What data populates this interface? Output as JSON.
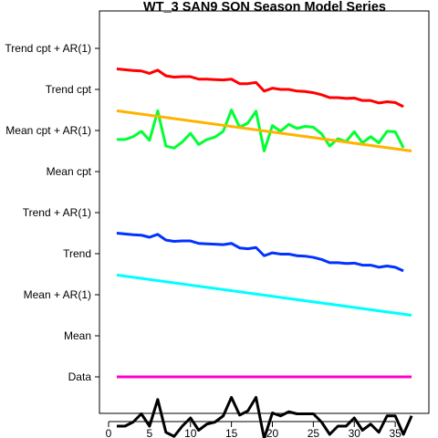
{
  "chart_data": {
    "type": "line",
    "title": "WT_3 SAN9 SON Season Model Series",
    "xlabel": "",
    "ylabel": "",
    "xlim": [
      0,
      38
    ],
    "x_ticks": [
      0,
      5,
      10,
      15,
      20,
      25,
      30,
      35
    ],
    "grid": false,
    "legend": "none",
    "y_categories": [
      "Data",
      "Mean",
      "Mean + AR(1)",
      "Trend",
      "Trend + AR(1)",
      "Mean cpt",
      "Mean cpt + AR(1)",
      "Trend cpt",
      "Trend cpt + AR(1)"
    ],
    "series": [
      {
        "name": "Data",
        "color": "#000000",
        "x": [
          1,
          2,
          3,
          4,
          5,
          6,
          7,
          8,
          9,
          10,
          11,
          12,
          13,
          14,
          15,
          16,
          17,
          18,
          19,
          20,
          21,
          22,
          23,
          24,
          25,
          26,
          27,
          28,
          29,
          30,
          31,
          32,
          33,
          34,
          35,
          36,
          37
        ],
        "y": [
          -0.2,
          -0.2,
          -0.1,
          0.1,
          -0.2,
          0.45,
          -0.35,
          -0.45,
          -0.2,
          0.0,
          -0.3,
          -0.15,
          -0.1,
          0.05,
          0.5,
          0.07,
          0.17,
          0.5,
          -0.5,
          0.12,
          0.05,
          0.15,
          0.1,
          0.1,
          0.1,
          -0.1,
          -0.4,
          -0.2,
          -0.2,
          0.0,
          -0.3,
          -0.15,
          -0.35,
          0.05,
          0.05,
          -0.4,
          0.05
        ]
      },
      {
        "name": "Mean",
        "color": "#ff00cc",
        "x": [
          1,
          37
        ],
        "y": [
          1,
          1
        ]
      },
      {
        "name": "Trend",
        "color": "#00ffff",
        "x": [
          1,
          37
        ],
        "y": [
          3.48,
          2.5
        ]
      },
      {
        "name": "Trend + AR(1)",
        "color": "#0033ff",
        "x": [
          1,
          2,
          3,
          4,
          5,
          6,
          7,
          8,
          9,
          10,
          11,
          12,
          13,
          14,
          15,
          16,
          17,
          18,
          19,
          20,
          21,
          22,
          23,
          24,
          25,
          26,
          27,
          28,
          29,
          30,
          31,
          32,
          33,
          34,
          35,
          36
        ],
        "y": [
          4.5,
          4.48,
          4.46,
          4.45,
          4.4,
          4.47,
          4.33,
          4.3,
          4.31,
          4.31,
          4.25,
          4.24,
          4.23,
          4.22,
          4.25,
          4.14,
          4.12,
          4.15,
          3.95,
          4.02,
          3.99,
          3.99,
          3.95,
          3.94,
          3.91,
          3.86,
          3.78,
          3.78,
          3.76,
          3.77,
          3.72,
          3.72,
          3.67,
          3.7,
          3.67,
          3.58
        ]
      },
      {
        "name": "Mean cpt + AR(1)",
        "color": "#00ff33",
        "x": [
          1,
          2,
          3,
          4,
          5,
          6,
          7,
          8,
          9,
          10,
          11,
          12,
          13,
          14,
          15,
          16,
          17,
          18,
          19,
          20,
          21,
          22,
          23,
          24,
          25,
          26,
          27,
          28,
          29,
          30,
          31,
          32,
          33,
          34,
          35,
          36
        ],
        "y": [
          6.78,
          6.78,
          6.85,
          6.98,
          6.76,
          7.48,
          6.62,
          6.57,
          6.72,
          6.93,
          6.66,
          6.78,
          6.84,
          6.98,
          7.5,
          7.08,
          7.18,
          7.47,
          6.5,
          7.12,
          6.98,
          7.15,
          7.05,
          7.1,
          7.08,
          6.92,
          6.62,
          6.8,
          6.73,
          6.97,
          6.7,
          6.85,
          6.7,
          6.98,
          6.97,
          6.58
        ]
      },
      {
        "name": "Trend cpt",
        "color": "#ffb300",
        "x": [
          1,
          37
        ],
        "y": [
          7.48,
          6.5
        ]
      },
      {
        "name": "Trend cpt + AR(1)",
        "color": "#ff0000",
        "x": [
          1,
          2,
          3,
          4,
          5,
          6,
          7,
          8,
          9,
          10,
          11,
          12,
          13,
          14,
          15,
          16,
          17,
          18,
          19,
          20,
          21,
          22,
          23,
          24,
          25,
          26,
          27,
          28,
          29,
          30,
          31,
          32,
          33,
          34,
          35,
          36
        ],
        "y": [
          8.5,
          8.48,
          8.46,
          8.45,
          8.39,
          8.47,
          8.33,
          8.3,
          8.31,
          8.31,
          8.25,
          8.25,
          8.24,
          8.23,
          8.25,
          8.14,
          8.14,
          8.17,
          7.96,
          8.03,
          8.0,
          8.0,
          7.96,
          7.95,
          7.92,
          7.87,
          7.8,
          7.8,
          7.78,
          7.79,
          7.73,
          7.73,
          7.67,
          7.7,
          7.68,
          7.58
        ]
      }
    ]
  }
}
